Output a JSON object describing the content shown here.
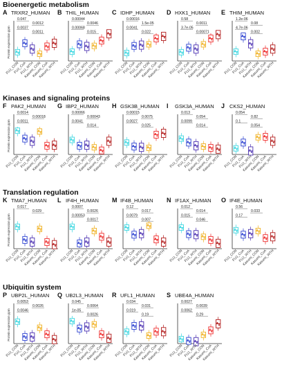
{
  "sections": [
    "Bioenergetic metabolism",
    "Kinases and signaling proteins",
    "Translation regulation",
    "Ubiquitin system"
  ],
  "ylabel": "Protein expression ppm",
  "groups": [
    "FUJ_CON",
    "FUJ_CoA",
    "FUJ_WTH",
    "Kasumi_CON",
    "Kasumi_CoA",
    "Kasumi_WTH"
  ],
  "colors": [
    "#3ad6e0",
    "#2a3fd0",
    "#4a2fb0",
    "#f0b020",
    "#ee2a2a",
    "#b01818"
  ],
  "chart_data": [
    {
      "type": "box",
      "letter": "A",
      "title": "TRXR2_HUMAN",
      "values": [
        28,
        62,
        40,
        22,
        50,
        62
      ],
      "pvalues": [
        "0.047",
        "0.0012",
        "0.0037",
        "0.0011"
      ]
    },
    {
      "type": "box",
      "letter": "B",
      "title": "THIL_HUMAN",
      "values": [
        30,
        58,
        50,
        52,
        72,
        98
      ],
      "pvalues": [
        "0.00044",
        "0.0046",
        "0.00068",
        "0.015"
      ]
    },
    {
      "type": "box",
      "letter": "C",
      "title": "IDHP_HUMAN",
      "values": [
        25,
        52,
        55,
        58,
        80,
        88
      ],
      "pvalues": [
        "0.00016",
        "1.5e-05",
        "0.0041",
        "0.022"
      ]
    },
    {
      "type": "box",
      "letter": "D",
      "title": "HXK1_HUMAN",
      "values": [
        28,
        45,
        40,
        58,
        80,
        95
      ],
      "pvalues": [
        "0.58",
        "0.0011",
        "3.7e-05",
        "0.00071"
      ]
    },
    {
      "type": "box",
      "letter": "E",
      "title": "THIM_HUMAN",
      "values": [
        30,
        88,
        60,
        22,
        30,
        40
      ],
      "pvalues": [
        "1.2e-06",
        "0.08",
        "4.7e-06",
        "0.002"
      ]
    },
    {
      "type": "box",
      "letter": "F",
      "title": "PAK2_HUMAN",
      "values": [
        85,
        55,
        45,
        82,
        28,
        30
      ],
      "pvalues": [
        "0.0014",
        "0.00018",
        "0.0011"
      ]
    },
    {
      "type": "box",
      "letter": "G",
      "title": "IBP2_HUMAN",
      "values": [
        50,
        28,
        30,
        22,
        10,
        45
      ],
      "pvalues": [
        "0.00066",
        "0.00043",
        "0.0041",
        "0.014"
      ]
    },
    {
      "type": "box",
      "letter": "H",
      "title": "GSK3B_HUMAN",
      "values": [
        40,
        25,
        22,
        20,
        70,
        75
      ],
      "pvalues": [
        "0.00015",
        "0.0075",
        "0.0027",
        "0.025"
      ]
    },
    {
      "type": "box",
      "letter": "I",
      "title": "GSK3A_HUMAN",
      "values": [
        55,
        40,
        28,
        25,
        20,
        15
      ],
      "pvalues": [
        "0.013",
        "0.054",
        "0.0099",
        "0.014"
      ]
    },
    {
      "type": "box",
      "letter": "J",
      "title": "CKS2_HUMAN",
      "values": [
        18,
        40,
        8,
        60,
        62,
        45
      ],
      "pvalues": [
        "0.054",
        "0.82",
        "0.1",
        "0.054"
      ]
    },
    {
      "type": "box",
      "letter": "K",
      "title": "TMA7_HUMAN",
      "values": [
        78,
        28,
        20,
        70,
        20,
        10
      ],
      "pvalues": [
        "0.017",
        "0.029"
      ]
    },
    {
      "type": "box",
      "letter": "L",
      "title": "IF4H_HUMAN",
      "values": [
        78,
        15,
        20,
        62,
        40,
        20
      ],
      "pvalues": [
        "0.0007",
        "0.0026",
        "0.00053",
        "0.0017"
      ]
    },
    {
      "type": "box",
      "letter": "M",
      "title": "IF4B_HUMAN",
      "values": [
        75,
        48,
        52,
        82,
        30,
        20
      ],
      "pvalues": [
        "0.12",
        "0.017",
        "0.0079",
        "0.007"
      ]
    },
    {
      "type": "box",
      "letter": "N",
      "title": "IF1AX_HUMAN",
      "values": [
        75,
        50,
        48,
        40,
        28,
        15
      ],
      "pvalues": [
        "0.012",
        "0.014",
        "0.015",
        "0.046"
      ]
    },
    {
      "type": "box",
      "letter": "O",
      "title": "IF4E_HUMAN",
      "values": [
        65,
        48,
        52,
        62,
        35,
        40
      ],
      "pvalues": [
        "0.56",
        "0.033",
        "0.17"
      ]
    },
    {
      "type": "box",
      "letter": "P",
      "title": "UBP2L_HUMAN",
      "values": [
        78,
        20,
        20,
        55,
        30,
        10
      ],
      "pvalues": [
        "0.0053",
        "0.0026",
        "0.0046"
      ]
    },
    {
      "type": "box",
      "letter": "Q",
      "title": "UB2L3_HUMAN",
      "values": [
        80,
        52,
        58,
        68,
        30,
        15
      ],
      "pvalues": [
        "0.045",
        "0.0064",
        "1e-05",
        "0.0026"
      ]
    },
    {
      "type": "box",
      "letter": "R",
      "title": "UFL1_HUMAN",
      "values": [
        40,
        62,
        62,
        25,
        40,
        40
      ],
      "pvalues": [
        "0.034",
        "0.031",
        "0.019",
        "0.19"
      ]
    },
    {
      "type": "box",
      "letter": "S",
      "title": "UBE4A_HUMAN",
      "values": [
        12,
        5,
        2,
        28,
        45,
        70
      ],
      "pvalues": [
        "0.0027",
        "0.0039",
        "0.0062",
        "0.29"
      ]
    }
  ]
}
